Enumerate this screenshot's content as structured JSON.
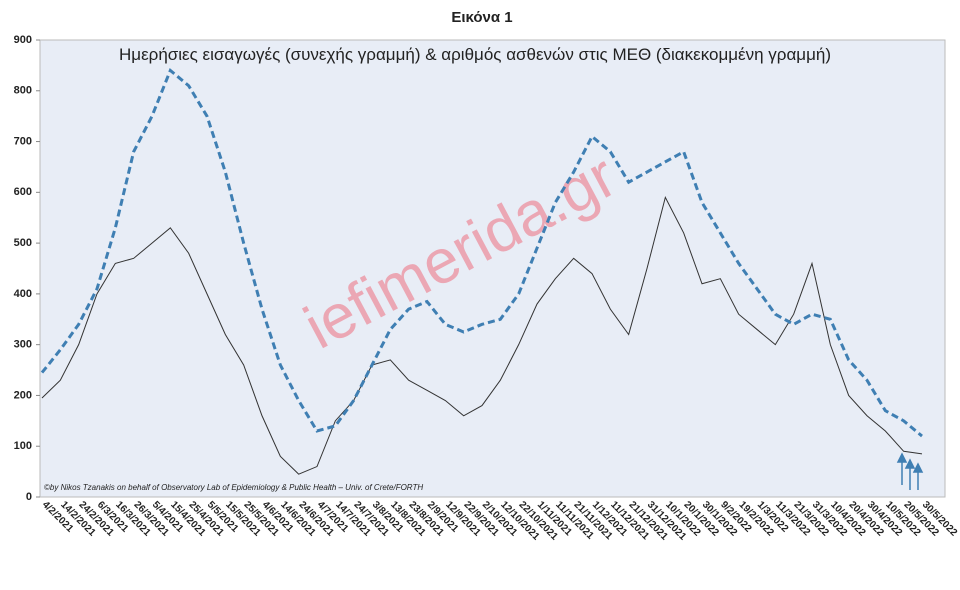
{
  "chart_data": {
    "type": "line",
    "title": "Εικόνα 1",
    "subtitle": "Ημερήσιες εισαγωγές (συνεχής γραμμή) & αριθμός ασθενών στις ΜΕΘ (διακεκομμένη γραμμή)",
    "annotations": [
      "©by Nikos Tzanakis on behalf of Observatory Lab of Epidemiology & Public Health – Univ. of Crete/FORTH",
      "iefimerida.gr"
    ],
    "categories": [
      "4/2/2021",
      "14/2/2021",
      "24/2/2021",
      "6/3/2021",
      "16/3/2021",
      "26/3/2021",
      "5/4/2021",
      "15/4/2021",
      "25/4/2021",
      "5/5/2021",
      "15/5/2021",
      "25/5/2021",
      "4/6/2021",
      "14/6/2021",
      "24/6/2021",
      "4/7/2021",
      "14/7/2021",
      "24/7/2021",
      "3/8/2021",
      "13/8/2021",
      "23/8/2021",
      "2/9/2021",
      "12/9/2021",
      "22/9/2021",
      "2/10/2021",
      "12/10/2021",
      "22/10/2021",
      "1/11/2021",
      "11/11/2021",
      "21/11/2021",
      "1/12/2021",
      "11/12/2021",
      "21/12/2021",
      "31/12/2021",
      "10/1/2022",
      "20/1/2022",
      "30/1/2022",
      "9/2/2022",
      "19/2/2022",
      "1/3/2022",
      "11/3/2022",
      "21/3/2022",
      "31/3/2022",
      "10/4/2022",
      "20/4/2022",
      "30/4/2022",
      "10/5/2022",
      "20/5/2022",
      "30/5/2022"
    ],
    "series": [
      {
        "color": "#333333",
        "dash": false,
        "values": [
          195,
          230,
          300,
          400,
          460,
          470,
          500,
          530,
          480,
          400,
          320,
          260,
          160,
          80,
          45,
          60,
          150,
          190,
          260,
          270,
          230,
          210,
          190,
          160,
          180,
          230,
          300,
          380,
          430,
          470,
          440,
          370,
          320,
          450,
          590,
          520,
          420,
          430,
          360,
          330,
          300,
          360,
          460,
          300,
          200,
          160,
          130,
          90,
          85
        ]
      },
      {
        "color": "#3f7fb3",
        "dash": true,
        "values": [
          245,
          290,
          340,
          410,
          530,
          680,
          750,
          840,
          810,
          750,
          640,
          500,
          370,
          260,
          190,
          130,
          140,
          190,
          260,
          330,
          370,
          385,
          340,
          325,
          340,
          350,
          400,
          490,
          580,
          640,
          710,
          680,
          620,
          640,
          660,
          680,
          580,
          520,
          460,
          410,
          360,
          340,
          360,
          350,
          270,
          230,
          170,
          150,
          120
        ]
      }
    ],
    "ylim": [
      0,
      900
    ],
    "yticks": [
      0,
      100,
      200,
      300,
      400,
      500,
      600,
      700,
      800,
      900
    ],
    "grid": false
  }
}
